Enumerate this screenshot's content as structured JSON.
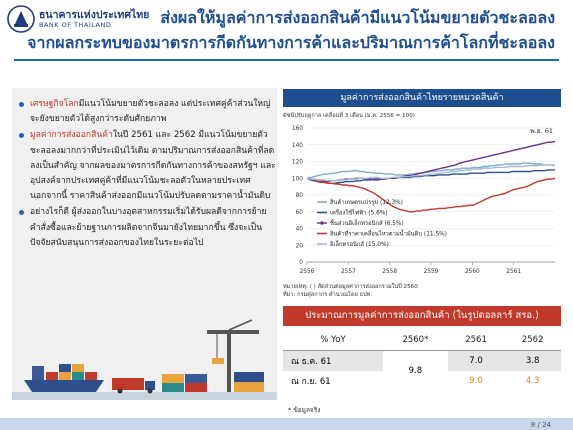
{
  "logo": {
    "th": "ธนาคารแห่งประเทศไทย",
    "en": "BANK OF THAILAND"
  },
  "title": {
    "line1": "ส่งผลให้มูลค่าการส่งออกสินค้ามีแนวโน้มขยายตัวชะลอลง",
    "line2": "จากผลกระทบของมาตรการกีดกันทางการค้าและปริมาณการค้าโลกที่ชะลอลง"
  },
  "bullets": [
    {
      "hl": "เศรษฐกิจโลก",
      "text": "มีแนวโน้มขยายตัวชะลอลง แต่ประเทศคู่ค้าส่วนใหญ่จะยังขยายตัวได้สูงกว่าระดับศักยภาพ"
    },
    {
      "hl": "มูลค่าการส่งออกสินค้า",
      "text": "ในปี 2561 และ 2562 มีแนวโน้มขยายตัวชะลอลงมากกว่าที่ประเมินไว้เดิม ตามปริมาณการส่งออกสินค้าที่ลดลงเป็นสำคัญ จากผลของมาตรการกีดกันทางการค้าของสหรัฐฯ และอุปสงค์จากประเทศคู่ค้าที่มีแนวโน้มชะลอตัวในหลายประเทศ นอกจากนี้ ราคาสินค้าส่งออกมีแนวโน้มปรับลดตามราคาน้ำมันดิบ"
    },
    {
      "hl": "",
      "text": "อย่างไรก็ดี ผู้ส่งออกในบางอุตสาหกรรมเริ่มได้รับผลดีจากการย้ายคำสั่งซื้อและย้ายฐานการผลิตจากจีนมายังไทยมากขึ้น ซึ่งจะเป็นปัจจัยสนับสนุนการส่งออกของไทยในระยะต่อไป"
    }
  ],
  "chart_header": "มูลค่าการส่งออกสินค้าไทยรายหมวดสินค้า",
  "chart_subtitle": "ดัชนีปรับฤดูกาล เคลื่อนที่ 3 เดือน (ม.ค. 2556 = 100)",
  "chart_data": {
    "type": "line",
    "ylim": [
      0,
      160
    ],
    "yticks": [
      0,
      20,
      40,
      60,
      80,
      100,
      120,
      140,
      160
    ],
    "xtick_labels": [
      "2556",
      "2557",
      "2558",
      "2559",
      "2560",
      "2561"
    ],
    "annotation": "พ.ย. 61",
    "series": [
      {
        "name": "สินค้าเกษตรแปรรูป (12.3%)",
        "color": "#7bafd4",
        "values": [
          100,
          101,
          102,
          103,
          104,
          105,
          105,
          106,
          106,
          107,
          108,
          108,
          108,
          109,
          109,
          108,
          108,
          107,
          107,
          106,
          106,
          106,
          105,
          105,
          105,
          104,
          104,
          104,
          104,
          105,
          105,
          106,
          106,
          107,
          107,
          108,
          108,
          109,
          109,
          110,
          110,
          110,
          111,
          111,
          112,
          112,
          112,
          113,
          113,
          113,
          114,
          114,
          115,
          115,
          116,
          116,
          117,
          117,
          117,
          117,
          117,
          118,
          118,
          118,
          117,
          117,
          117,
          116,
          116,
          116,
          115
        ]
      },
      {
        "name": "เครื่องใช้ไฟฟ้า (5.6%)",
        "color": "#2e4f8c",
        "values": [
          100,
          98,
          97,
          96,
          95,
          95,
          94,
          94,
          94,
          95,
          95,
          96,
          96,
          96,
          97,
          97,
          98,
          98,
          98,
          99,
          99,
          99,
          99,
          100,
          100,
          100,
          101,
          101,
          101,
          101,
          102,
          102,
          102,
          103,
          103,
          103,
          103,
          104,
          104,
          104,
          104,
          105,
          105,
          105,
          105,
          105,
          106,
          106,
          106,
          106,
          106,
          107,
          107,
          107,
          107,
          107,
          107,
          107,
          108,
          108,
          108,
          108,
          108,
          108,
          109,
          109,
          109,
          109,
          110,
          110,
          110
        ]
      },
      {
        "name": "ชิ้นส่วนอิเล็กทรอนิกส์ (6.5%)",
        "color": "#6a2e8f",
        "values": [
          100,
          99,
          98,
          97,
          97,
          96,
          96,
          97,
          97,
          98,
          98,
          99,
          99,
          99,
          100,
          100,
          100,
          99,
          99,
          98,
          98,
          99,
          99,
          100,
          100,
          101,
          101,
          102,
          103,
          103,
          104,
          105,
          106,
          107,
          108,
          109,
          110,
          111,
          112,
          113,
          114,
          115,
          116,
          118,
          119,
          120,
          121,
          122,
          123,
          124,
          125,
          126,
          127,
          128,
          129,
          130,
          131,
          132,
          133,
          134,
          135,
          136,
          137,
          138,
          139,
          140,
          141,
          142,
          143,
          143,
          144
        ]
      },
      {
        "name": "สินค้าที่ราคาเคลื่อนไหวตามน้ำมันดิบ (11.5%)",
        "color": "#c0392b",
        "values": [
          100,
          99,
          98,
          97,
          96,
          95,
          94,
          94,
          93,
          93,
          92,
          92,
          91,
          91,
          90,
          89,
          88,
          86,
          84,
          82,
          79,
          76,
          73,
          70,
          67,
          65,
          63,
          62,
          61,
          60,
          60,
          61,
          61,
          62,
          62,
          63,
          63,
          64,
          64,
          64,
          65,
          65,
          66,
          66,
          67,
          67,
          68,
          68,
          70,
          72,
          74,
          76,
          78,
          79,
          80,
          81,
          82,
          84,
          86,
          87,
          88,
          89,
          90,
          92,
          94,
          96,
          97,
          98,
          99,
          99,
          100
        ]
      },
      {
        "name": "อิเล็กทรอนิกส์ (15.0%)",
        "color": "#a8b8cc",
        "values": [
          100,
          99,
          99,
          98,
          98,
          98,
          97,
          97,
          97,
          98,
          98,
          98,
          99,
          99,
          99,
          100,
          100,
          100,
          101,
          101,
          101,
          100,
          100,
          100,
          101,
          101,
          101,
          102,
          102,
          102,
          103,
          103,
          103,
          104,
          104,
          105,
          105,
          106,
          106,
          107,
          107,
          108,
          108,
          109,
          109,
          110,
          110,
          111,
          111,
          111,
          112,
          112,
          112,
          113,
          113,
          113,
          113,
          114,
          114,
          114,
          114,
          114,
          115,
          115,
          115,
          115,
          116,
          116,
          116,
          116,
          116
        ]
      }
    ]
  },
  "chart_notes": [
    "หมายเหตุ: ( ) สัดส่วนต่อมูลค่าการส่งออกรวมในปี 2560",
    "ที่มา: กรมศุลกากร คำนวณโดย ธปท."
  ],
  "table": {
    "header": "ประมาณการมูลค่าการส่งออกสินค้า (ในรูปดอลลาร์ สรอ.)",
    "columns": [
      "% YoY",
      "2560*",
      "2561",
      "2562"
    ],
    "rows": [
      {
        "label": "ณ ธ.ค. 61",
        "v2561": "7.0",
        "v2562": "3.8"
      },
      {
        "label": "ณ ก.ย. 61",
        "v2561": "9.0",
        "v2562": "4.3"
      }
    ],
    "merged_2560": "9.8",
    "note": "* ข้อมูลจริง"
  },
  "page": "8 / 24",
  "colors": {
    "title": "#1f4e8f",
    "accent_red": "#c0392b",
    "accent_orange": "#e67e22"
  }
}
